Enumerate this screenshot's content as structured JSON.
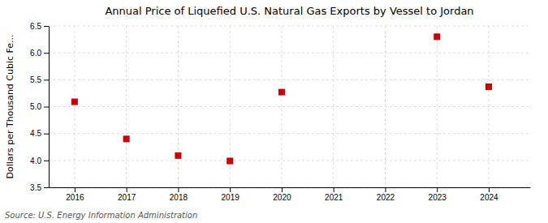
{
  "chart_data": {
    "type": "scatter",
    "title": "Annual Price of Liquefied U.S. Natural Gas Exports by Vessel to Jordan",
    "ylabel": "Dollars per Thousand Cubic Fe...",
    "source": "Source: U.S. Energy Information Administration",
    "x": [
      2016,
      2017,
      2018,
      2019,
      2020,
      2023,
      2024
    ],
    "values": [
      5.09,
      4.4,
      4.09,
      3.99,
      5.27,
      6.3,
      5.37
    ],
    "xlim": [
      2015.5,
      2024.8
    ],
    "ylim": [
      3.5,
      6.5
    ],
    "xticks": [
      2016,
      2017,
      2018,
      2019,
      2020,
      2021,
      2022,
      2023,
      2024
    ],
    "yticks": [
      3.5,
      {
        "value": 4.0,
        "label": "4.0"
      },
      4.5,
      {
        "value": 5.0,
        "label": "5.0"
      },
      5.5,
      {
        "value": 6.0,
        "label": "6.0"
      },
      6.5
    ],
    "color": "#cc0000",
    "marker": "square",
    "grid": true
  }
}
